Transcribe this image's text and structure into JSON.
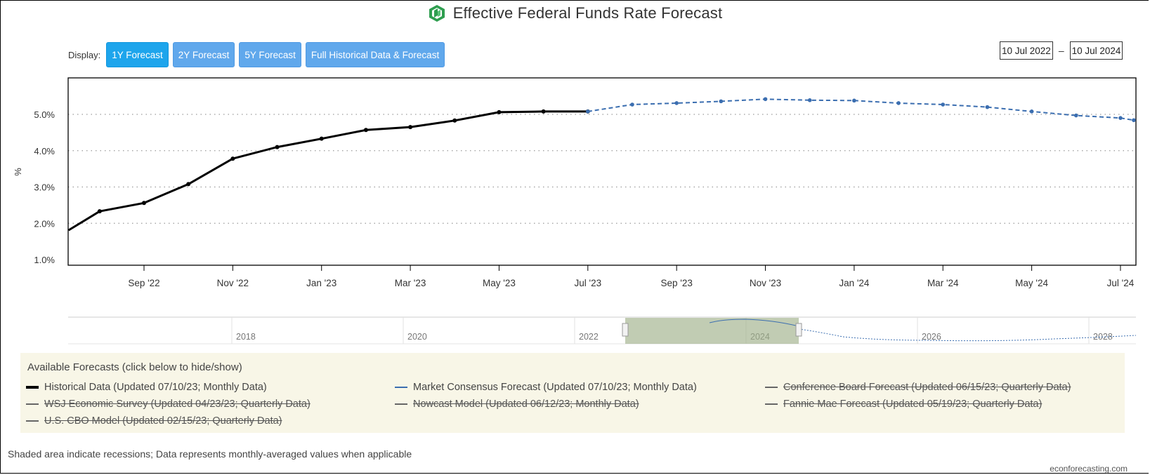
{
  "title": "Effective Federal Funds Rate Forecast",
  "display_label": "Display:",
  "buttons": [
    "1Y Forecast",
    "2Y Forecast",
    "5Y Forecast",
    "Full Historical Data & Forecast"
  ],
  "active_button": 0,
  "range": {
    "from": "10 Jul 2022",
    "separator": "–",
    "to": "10 Jul 2024"
  },
  "legend": {
    "title": "Available Forecasts (click below to hide/show)",
    "items": [
      {
        "label": "Historical Data (Updated 07/10/23; Monthly Data)",
        "color": "#000000",
        "hidden": false
      },
      {
        "label": "Market Consensus Forecast (Updated 07/10/23; Monthly Data)",
        "color": "#3b6eb0",
        "hidden": false
      },
      {
        "label": "Conference Board Forecast (Updated 06/15/23; Quarterly Data)",
        "color": "#666666",
        "hidden": true
      },
      {
        "label": "WSJ Economic Survey (Updated 04/23/23; Quarterly Data)",
        "color": "#666666",
        "hidden": true
      },
      {
        "label": "Nowcast Model (Updated 06/12/23; Monthly Data)",
        "color": "#666666",
        "hidden": true
      },
      {
        "label": "Fannie Mae Forecast (Updated 05/19/23; Quarterly Data)",
        "color": "#666666",
        "hidden": true
      },
      {
        "label": "U.S. CBO Model (Updated 02/15/23; Quarterly Data)",
        "color": "#666666",
        "hidden": true
      }
    ]
  },
  "footnote": "Shaded area indicate recessions; Data represents monthly-averaged values when applicable",
  "credit": "econforecasting.com",
  "navigator": {
    "years": [
      "2018",
      "2020",
      "2022",
      "2024",
      "2026",
      "2028"
    ]
  },
  "chart_data": {
    "type": "line",
    "title": "Effective Federal Funds Rate Forecast",
    "ylabel": "%",
    "ylim": [
      1.0,
      5.8
    ],
    "y_ticks": [
      "1.0%",
      "2.0%",
      "3.0%",
      "4.0%",
      "5.0%"
    ],
    "y_tick_values": [
      1,
      2,
      3,
      4,
      5
    ],
    "x_ticks": [
      "Sep '22",
      "Nov '22",
      "Jan '23",
      "Mar '23",
      "May '23",
      "Jul '23",
      "Sep '23",
      "Nov '23",
      "Jan '24",
      "Mar '24",
      "May '24",
      "Jul '24"
    ],
    "x_tick_months": [
      2,
      4,
      6,
      8,
      10,
      12,
      14,
      16,
      18,
      20,
      22,
      24
    ],
    "x_range_months": [
      0.3,
      24.3
    ],
    "series": [
      {
        "name": "Historical Data",
        "style": "solid",
        "color": "#000000",
        "x_months": [
          0.3,
          1,
          2,
          3,
          4,
          5,
          6,
          7,
          8,
          9,
          10,
          11,
          12
        ],
        "values": [
          1.81,
          2.33,
          2.56,
          3.08,
          3.78,
          4.1,
          4.33,
          4.57,
          4.65,
          4.83,
          5.06,
          5.08,
          5.08
        ]
      },
      {
        "name": "Market Consensus Forecast",
        "style": "dashed",
        "color": "#3b6eb0",
        "x_months": [
          12,
          13,
          14,
          15,
          16,
          17,
          18,
          19,
          20,
          21,
          22,
          23,
          24,
          24.3
        ],
        "values": [
          5.08,
          5.27,
          5.31,
          5.36,
          5.42,
          5.39,
          5.38,
          5.31,
          5.27,
          5.2,
          5.08,
          4.97,
          4.9,
          4.84
        ]
      }
    ]
  }
}
